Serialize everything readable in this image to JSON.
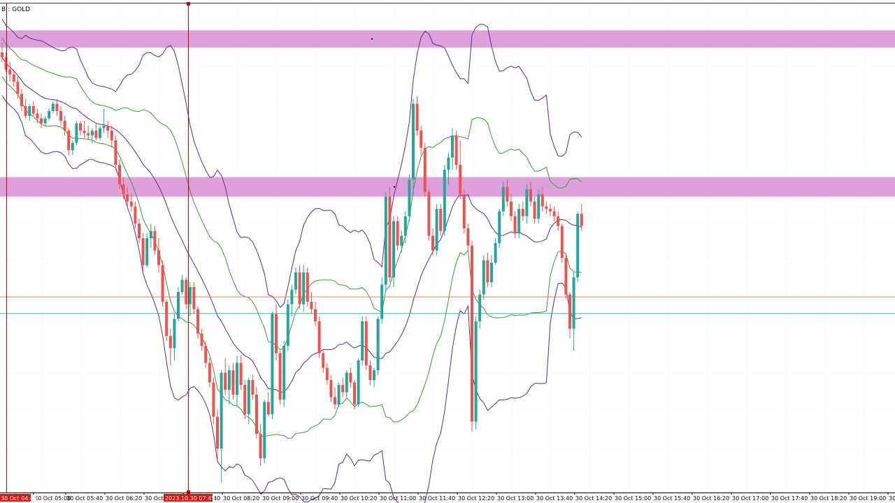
{
  "window": {
    "symbol_label": "B;: GOLD"
  },
  "colors": {
    "bull": "#26a69a",
    "bear": "#ef5350",
    "zone": "#dda0dd",
    "outer_band": "#5b2c8a",
    "inner_band": "#3a9a3a",
    "crosshair": "#cc0000",
    "hline_red": "#e08070",
    "hline_teal": "#40b0a0",
    "grid": "#dcdcdc"
  },
  "chart_data": {
    "type": "candlestick",
    "timeframe_minutes": 5,
    "x_tick_labels": [
      "30 Oct 05:00",
      "30 Oct 05:40",
      "30 Oct 06:20",
      "30 Oct 07:00",
      "30 Oct 07:40",
      "30 Oct 08:20",
      "30 Oct 09:00",
      "30 Oct 09:40",
      "30 Oct 10:20",
      "30 Oct 11:00",
      "30 Oct 11:40",
      "30 Oct 12:20",
      "30 Oct 13:00",
      "30 Oct 13:40",
      "30 Oct 14:20",
      "30 Oct 15:00",
      "30 Oct 15:40",
      "30 Oct 16:20",
      "30 Oct 17:00",
      "30 Oct 17:40",
      "30 Oct 18:20",
      "30 Oct 19:00",
      "30"
    ],
    "crosshair_time_labels": [
      "30 Oct 04:40",
      "2023.10.30 07:45"
    ],
    "y_range": [
      100,
      0
    ],
    "supply_demand_zones": [
      {
        "high": 94.5,
        "low": 91.0
      },
      {
        "high": 64.5,
        "low": 60.5
      }
    ],
    "horizontal_levels": [
      {
        "value": 40.0,
        "color": "hline_red"
      },
      {
        "value": 36.6,
        "color": "hline_teal"
      }
    ],
    "candles": [
      [
        90.0,
        92.0,
        88.0,
        89.0
      ],
      [
        89.0,
        90.0,
        86.0,
        86.5
      ],
      [
        86.5,
        88.0,
        84.0,
        85.5
      ],
      [
        85.5,
        86.5,
        83.0,
        84.0
      ],
      [
        84.0,
        85.0,
        80.5,
        81.5
      ],
      [
        81.5,
        82.5,
        78.0,
        79.0
      ],
      [
        79.0,
        80.5,
        76.5,
        77.0
      ],
      [
        77.0,
        79.5,
        76.0,
        79.0
      ],
      [
        79.0,
        80.0,
        77.0,
        77.5
      ],
      [
        77.5,
        78.5,
        75.5,
        76.5
      ],
      [
        76.5,
        77.5,
        74.5,
        75.5
      ],
      [
        75.5,
        77.0,
        75.0,
        76.5
      ],
      [
        76.5,
        78.5,
        76.0,
        78.0
      ],
      [
        78.0,
        80.0,
        77.5,
        79.5
      ],
      [
        79.5,
        80.5,
        77.0,
        78.0
      ],
      [
        78.0,
        79.0,
        75.0,
        76.0
      ],
      [
        76.0,
        77.0,
        73.0,
        74.0
      ],
      [
        74.0,
        74.5,
        69.0,
        70.0
      ],
      [
        70.0,
        72.0,
        69.0,
        71.5
      ],
      [
        71.5,
        76.0,
        71.0,
        75.5
      ],
      [
        75.5,
        76.0,
        73.0,
        74.0
      ],
      [
        74.0,
        76.0,
        72.5,
        73.5
      ],
      [
        73.5,
        75.0,
        72.0,
        73.0
      ],
      [
        73.0,
        74.5,
        71.5,
        74.0
      ],
      [
        74.0,
        75.5,
        72.0,
        72.5
      ],
      [
        72.5,
        75.0,
        72.0,
        74.5
      ],
      [
        74.5,
        78.5,
        73.5,
        75.0
      ],
      [
        75.0,
        76.0,
        72.5,
        74.0
      ],
      [
        74.0,
        75.0,
        70.5,
        72.0
      ],
      [
        72.0,
        73.0,
        66.0,
        67.0
      ],
      [
        67.0,
        68.0,
        62.0,
        63.0
      ],
      [
        63.0,
        64.5,
        60.0,
        61.0
      ],
      [
        61.0,
        62.5,
        58.5,
        59.5
      ],
      [
        59.5,
        61.0,
        57.5,
        58.5
      ],
      [
        58.5,
        59.5,
        54.0,
        55.0
      ],
      [
        55.0,
        56.0,
        51.0,
        52.0
      ],
      [
        52.0,
        53.0,
        45.0,
        46.5
      ],
      [
        46.5,
        53.0,
        46.0,
        52.0
      ],
      [
        52.0,
        55.0,
        50.0,
        53.5
      ],
      [
        53.5,
        54.5,
        48.5,
        49.5
      ],
      [
        49.5,
        52.0,
        45.0,
        46.5
      ],
      [
        46.5,
        47.5,
        38.0,
        39.0
      ],
      [
        39.0,
        39.5,
        31.0,
        32.0
      ],
      [
        32.0,
        33.5,
        26.0,
        29.5
      ],
      [
        29.5,
        36.5,
        27.0,
        35.5
      ],
      [
        35.5,
        42.0,
        35.0,
        41.0
      ],
      [
        41.0,
        44.5,
        40.5,
        43.5
      ],
      [
        43.5,
        44.0,
        37.5,
        38.5
      ],
      [
        38.5,
        43.0,
        36.0,
        42.0
      ],
      [
        42.0,
        43.0,
        36.5,
        37.5
      ],
      [
        37.5,
        38.0,
        31.5,
        32.5
      ],
      [
        32.5,
        33.5,
        29.0,
        30.0
      ],
      [
        30.0,
        31.0,
        25.5,
        26.5
      ],
      [
        26.5,
        27.5,
        21.5,
        22.5
      ],
      [
        22.5,
        23.5,
        14.0,
        15.5
      ],
      [
        15.5,
        17.0,
        6.5,
        9.0
      ],
      [
        9.0,
        25.0,
        2.0,
        24.5
      ],
      [
        24.5,
        27.5,
        20.0,
        21.0
      ],
      [
        21.0,
        26.0,
        18.0,
        25.0
      ],
      [
        25.0,
        26.5,
        19.0,
        20.0
      ],
      [
        20.0,
        28.0,
        17.5,
        26.5
      ],
      [
        26.5,
        28.0,
        21.0,
        22.0
      ],
      [
        22.0,
        23.0,
        15.0,
        16.0
      ],
      [
        16.0,
        23.5,
        14.0,
        23.0
      ],
      [
        23.0,
        24.0,
        19.0,
        20.0
      ],
      [
        20.0,
        21.5,
        11.0,
        12.0
      ],
      [
        12.0,
        14.0,
        5.5,
        7.0
      ],
      [
        7.0,
        19.0,
        6.0,
        18.5
      ],
      [
        18.5,
        20.5,
        15.5,
        16.0
      ],
      [
        16.0,
        37.0,
        15.0,
        36.5
      ],
      [
        36.5,
        38.5,
        27.0,
        28.5
      ],
      [
        28.5,
        29.0,
        18.0,
        19.0
      ],
      [
        19.0,
        31.0,
        17.5,
        30.0
      ],
      [
        30.0,
        39.5,
        29.0,
        38.5
      ],
      [
        38.5,
        42.5,
        36.0,
        41.5
      ],
      [
        41.5,
        46.0,
        40.5,
        45.0
      ],
      [
        45.0,
        46.5,
        37.5,
        38.5
      ],
      [
        38.5,
        46.5,
        37.0,
        45.0
      ],
      [
        45.0,
        46.0,
        38.0,
        39.0
      ],
      [
        39.0,
        41.0,
        36.5,
        37.5
      ],
      [
        37.5,
        39.0,
        34.0,
        35.0
      ],
      [
        35.0,
        36.0,
        27.5,
        28.5
      ],
      [
        28.5,
        29.0,
        24.5,
        25.5
      ],
      [
        25.5,
        26.5,
        22.0,
        23.0
      ],
      [
        23.0,
        24.0,
        18.5,
        19.5
      ],
      [
        19.5,
        21.5,
        17.0,
        18.0
      ],
      [
        18.0,
        22.5,
        17.5,
        22.0
      ],
      [
        22.0,
        23.5,
        19.5,
        20.5
      ],
      [
        20.5,
        25.0,
        19.5,
        24.5
      ],
      [
        24.5,
        25.5,
        21.5,
        22.5
      ],
      [
        22.5,
        23.0,
        17.0,
        18.0
      ],
      [
        18.0,
        27.5,
        17.5,
        27.0
      ],
      [
        27.0,
        36.0,
        26.0,
        35.0
      ],
      [
        35.0,
        36.0,
        25.0,
        26.0
      ],
      [
        26.0,
        27.0,
        22.0,
        23.0
      ],
      [
        23.0,
        25.5,
        21.5,
        25.0
      ],
      [
        25.0,
        36.0,
        24.0,
        35.5
      ],
      [
        35.5,
        44.0,
        34.5,
        42.5
      ],
      [
        42.5,
        61.5,
        41.0,
        60.5
      ],
      [
        60.5,
        62.5,
        43.0,
        44.0
      ],
      [
        44.0,
        56.5,
        42.0,
        55.5
      ],
      [
        55.5,
        56.5,
        49.5,
        50.5
      ],
      [
        50.5,
        53.5,
        49.0,
        52.5
      ],
      [
        52.5,
        57.5,
        51.0,
        56.5
      ],
      [
        56.5,
        65.0,
        55.5,
        64.0
      ],
      [
        64.0,
        80.5,
        61.0,
        79.5
      ],
      [
        79.5,
        81.0,
        73.0,
        74.0
      ],
      [
        74.0,
        75.0,
        69.0,
        70.5
      ],
      [
        70.5,
        71.5,
        60.5,
        61.5
      ],
      [
        61.5,
        62.0,
        51.5,
        52.5
      ],
      [
        52.5,
        54.0,
        48.5,
        49.5
      ],
      [
        49.5,
        59.0,
        48.5,
        58.0
      ],
      [
        58.0,
        59.0,
        52.5,
        53.5
      ],
      [
        53.5,
        67.0,
        52.5,
        66.0
      ],
      [
        66.0,
        69.5,
        63.0,
        68.5
      ],
      [
        68.5,
        74.5,
        66.0,
        73.0
      ],
      [
        73.0,
        74.0,
        66.0,
        67.0
      ],
      [
        67.0,
        72.0,
        60.0,
        61.0
      ],
      [
        61.0,
        62.0,
        53.0,
        54.0
      ],
      [
        54.0,
        55.0,
        49.5,
        50.5
      ],
      [
        50.5,
        51.5,
        12.5,
        14.5
      ],
      [
        14.5,
        36.0,
        13.0,
        35.0
      ],
      [
        35.0,
        41.5,
        33.5,
        40.5
      ],
      [
        40.5,
        48.5,
        39.5,
        47.5
      ],
      [
        47.5,
        49.0,
        42.0,
        43.0
      ],
      [
        43.0,
        48.5,
        42.0,
        47.0
      ],
      [
        47.0,
        52.0,
        46.5,
        51.0
      ],
      [
        51.0,
        58.0,
        50.0,
        57.5
      ],
      [
        57.5,
        63.5,
        56.5,
        62.5
      ],
      [
        62.5,
        64.0,
        58.5,
        59.5
      ],
      [
        59.5,
        61.0,
        55.5,
        56.5
      ],
      [
        56.5,
        57.5,
        52.0,
        53.0
      ],
      [
        53.0,
        59.0,
        52.0,
        58.0
      ],
      [
        58.0,
        59.5,
        55.5,
        56.5
      ],
      [
        56.5,
        63.0,
        55.0,
        62.0
      ],
      [
        62.0,
        63.5,
        58.5,
        59.5
      ],
      [
        59.5,
        60.5,
        55.0,
        56.0
      ],
      [
        56.0,
        62.0,
        55.0,
        61.0
      ],
      [
        61.0,
        62.5,
        57.5,
        58.5
      ],
      [
        58.5,
        59.5,
        57.0,
        58.0
      ],
      [
        58.0,
        59.0,
        56.5,
        57.5
      ],
      [
        57.5,
        58.5,
        55.5,
        56.5
      ],
      [
        56.5,
        57.5,
        53.5,
        54.5
      ],
      [
        54.5,
        55.0,
        47.0,
        48.0
      ],
      [
        48.0,
        49.0,
        39.5,
        40.5
      ],
      [
        40.5,
        41.0,
        31.5,
        33.5
      ],
      [
        33.5,
        45.0,
        29.0,
        44.0
      ],
      [
        44.0,
        57.5,
        43.0,
        57.0
      ],
      [
        57.0,
        59.0,
        53.5,
        54.5
      ]
    ]
  }
}
